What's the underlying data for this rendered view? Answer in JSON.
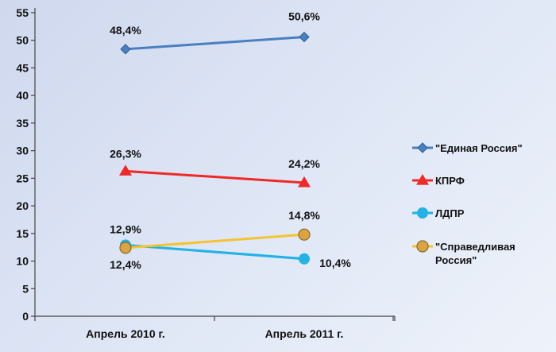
{
  "chart_data": {
    "type": "line",
    "title": "",
    "xlabel": "",
    "ylabel": "",
    "categories": [
      "Апрель 2010 г.",
      "Апрель 2011 г."
    ],
    "ylim": [
      0,
      55
    ],
    "yticks": [
      0,
      5,
      10,
      15,
      20,
      25,
      30,
      35,
      40,
      45,
      50,
      55
    ],
    "grid": false,
    "legend_position": "right",
    "series": [
      {
        "name": "\"Единая Россия\"",
        "values": [
          48.4,
          50.6
        ],
        "labels": [
          "48,4%",
          "50,6%"
        ],
        "color": "#4a7fc0",
        "marker": "diamond"
      },
      {
        "name": "КПРФ",
        "values": [
          26.3,
          24.2
        ],
        "labels": [
          "26,3%",
          "24,2%"
        ],
        "color": "#f02828",
        "marker": "triangle"
      },
      {
        "name": "ЛДПР",
        "values": [
          12.9,
          10.4
        ],
        "labels": [
          "12,9%",
          "10,4%"
        ],
        "color": "#22b2e4",
        "marker": "circle"
      },
      {
        "name": "\"Справедливая Россия\"",
        "values": [
          12.4,
          14.8
        ],
        "labels": [
          "12,4%",
          "14,8%"
        ],
        "color": "#f4c430",
        "marker": "circle-orange"
      }
    ]
  }
}
